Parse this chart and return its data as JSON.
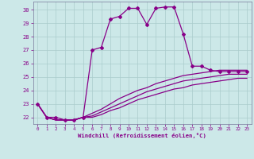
{
  "hours": [
    0,
    1,
    2,
    3,
    4,
    5,
    6,
    7,
    8,
    9,
    10,
    11,
    12,
    13,
    14,
    15,
    16,
    17,
    18,
    19,
    20,
    21,
    22,
    23
  ],
  "temp_main": [
    23,
    22,
    22,
    21.8,
    21.8,
    22.0,
    27.0,
    27.2,
    29.3,
    29.5,
    30.1,
    30.1,
    28.9,
    30.1,
    30.2,
    30.2,
    28.2,
    25.8,
    25.8,
    25.5,
    25.4,
    25.4,
    25.4,
    25.4
  ],
  "temp_line2": [
    23,
    22,
    21.8,
    21.8,
    21.8,
    22.0,
    22.3,
    22.6,
    23.0,
    23.4,
    23.7,
    24.0,
    24.2,
    24.5,
    24.7,
    24.9,
    25.1,
    25.2,
    25.3,
    25.4,
    25.5,
    25.5,
    25.5,
    25.5
  ],
  "temp_line3": [
    23,
    22,
    21.8,
    21.8,
    21.8,
    22.0,
    22.1,
    22.4,
    22.7,
    23.0,
    23.3,
    23.6,
    23.9,
    24.1,
    24.3,
    24.5,
    24.7,
    24.8,
    24.9,
    25.0,
    25.1,
    25.2,
    25.2,
    25.2
  ],
  "temp_line4": [
    23,
    22,
    21.8,
    21.8,
    21.8,
    22.0,
    22.0,
    22.2,
    22.5,
    22.7,
    23.0,
    23.3,
    23.5,
    23.7,
    23.9,
    24.1,
    24.2,
    24.4,
    24.5,
    24.6,
    24.7,
    24.8,
    24.9,
    24.9
  ],
  "ylim": [
    21.5,
    30.6
  ],
  "xlim": [
    -0.5,
    23.5
  ],
  "yticks": [
    22,
    23,
    24,
    25,
    26,
    27,
    28,
    29,
    30
  ],
  "xticks": [
    0,
    1,
    2,
    3,
    4,
    5,
    6,
    7,
    8,
    9,
    10,
    11,
    12,
    13,
    14,
    15,
    16,
    17,
    18,
    19,
    20,
    21,
    22,
    23
  ],
  "line_color": "#880088",
  "bg_color": "#cce8e8",
  "grid_color": "#aacccc",
  "xlabel": "Windchill (Refroidissement éolien,°C)",
  "marker": "D",
  "marker_size": 2.0,
  "line_width": 0.9
}
